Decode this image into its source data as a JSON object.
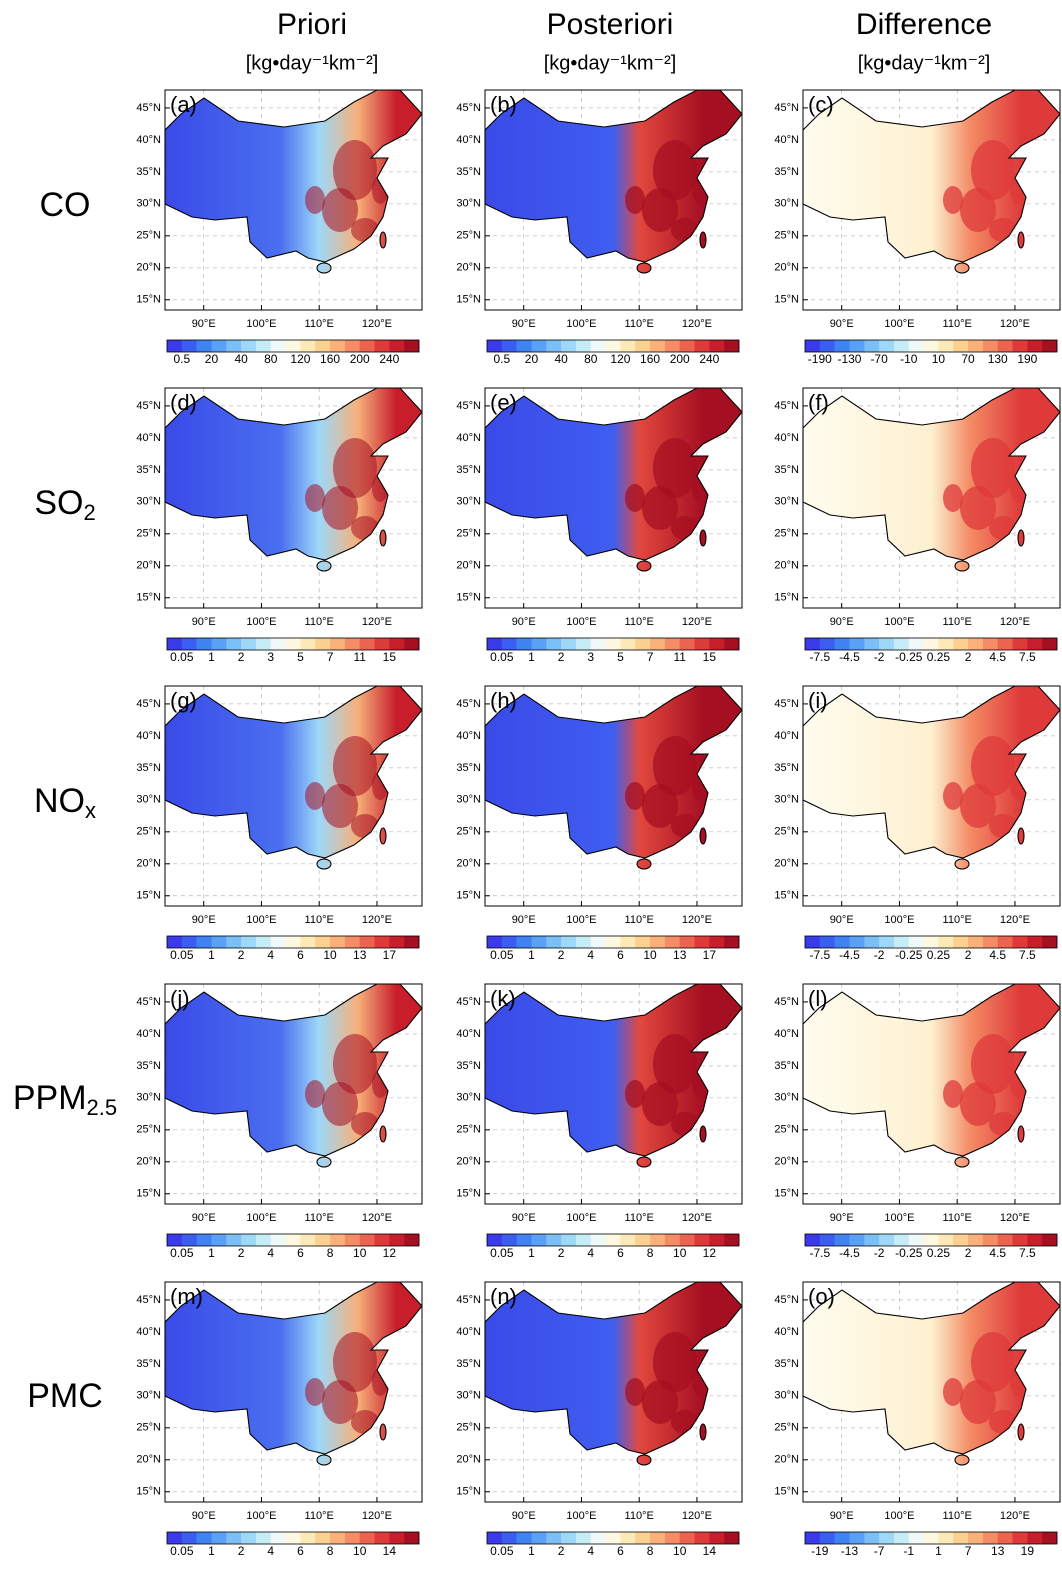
{
  "columns": [
    {
      "title": "Priori",
      "unit": "[kg•day⁻¹km⁻²]"
    },
    {
      "title": "Posteriori",
      "unit": "[kg•day⁻¹km⁻²]"
    },
    {
      "title": "Difference",
      "unit": "[kg•day⁻¹km⁻²]"
    }
  ],
  "rows": [
    {
      "label": "CO"
    },
    {
      "label": "SO",
      "subscript": "2"
    },
    {
      "label": "NO",
      "subscript": "x"
    },
    {
      "label": "PPM",
      "subscript": "2.5"
    },
    {
      "label": "PMC"
    }
  ],
  "map": {
    "lonlim": [
      83.3,
      127.8
    ],
    "latlim": [
      13.4,
      47.8
    ],
    "lat_ticks": [
      {
        "value": 15,
        "label": "15°N"
      },
      {
        "value": 20,
        "label": "20°N"
      },
      {
        "value": 25,
        "label": "25°N"
      },
      {
        "value": 30,
        "label": "30°N"
      },
      {
        "value": 35,
        "label": "35°N"
      },
      {
        "value": 40,
        "label": "40°N"
      },
      {
        "value": 45,
        "label": "45°N"
      }
    ],
    "lon_ticks": [
      {
        "value": 90,
        "label": "90°E"
      },
      {
        "value": 100,
        "label": "100°E"
      },
      {
        "value": 110,
        "label": "110°E"
      },
      {
        "value": 120,
        "label": "120°E"
      }
    ]
  },
  "palette": [
    "#3a3ae8",
    "#3a5ef0",
    "#3f82f2",
    "#5aa0f4",
    "#7cbef6",
    "#9ed8f8",
    "#c6ecf8",
    "#eef9f8",
    "#fff8e0",
    "#fde8b8",
    "#fcd090",
    "#f9b07a",
    "#f48c66",
    "#ec6350",
    "#de3a3a",
    "#c81e2c",
    "#a50f22"
  ],
  "panels": [
    {
      "label": "(a)",
      "colorbar_ticks": [
        0.5,
        20,
        40,
        80,
        120,
        160,
        200,
        240
      ]
    },
    {
      "label": "(b)",
      "colorbar_ticks": [
        0.5,
        20,
        40,
        80,
        120,
        160,
        200,
        240
      ]
    },
    {
      "label": "(c)",
      "colorbar_ticks": [
        -190,
        -130,
        -70,
        -10,
        10,
        70,
        130,
        190
      ]
    },
    {
      "label": "(d)",
      "colorbar_ticks": [
        0.05,
        1,
        2,
        3,
        5,
        7,
        11,
        15
      ]
    },
    {
      "label": "(e)",
      "colorbar_ticks": [
        0.05,
        1,
        2,
        3,
        5,
        7,
        11,
        15
      ]
    },
    {
      "label": "(f)",
      "colorbar_ticks": [
        -7.5,
        -4.5,
        -2,
        -0.25,
        0.25,
        2,
        4.5,
        7.5
      ]
    },
    {
      "label": "(g)",
      "colorbar_ticks": [
        0.05,
        1,
        2,
        4,
        6,
        10,
        13,
        17
      ]
    },
    {
      "label": "(h)",
      "colorbar_ticks": [
        0.05,
        1,
        2,
        4,
        6,
        10,
        13,
        17
      ]
    },
    {
      "label": "(i)",
      "colorbar_ticks": [
        -7.5,
        -4.5,
        -2,
        -0.25,
        0.25,
        2,
        4.5,
        7.5
      ]
    },
    {
      "label": "(j)",
      "colorbar_ticks": [
        0.05,
        1,
        2,
        4,
        6,
        8,
        10,
        12
      ]
    },
    {
      "label": "(k)",
      "colorbar_ticks": [
        0.05,
        1,
        2,
        4,
        6,
        8,
        10,
        12
      ]
    },
    {
      "label": "(l)",
      "colorbar_ticks": [
        -7.5,
        -4.5,
        -2,
        -0.25,
        0.25,
        2,
        4.5,
        7.5
      ]
    },
    {
      "label": "(m)",
      "colorbar_ticks": [
        0.05,
        1,
        2,
        4,
        6,
        8,
        10,
        14
      ]
    },
    {
      "label": "(n)",
      "colorbar_ticks": [
        0.05,
        1,
        2,
        4,
        6,
        8,
        10,
        14
      ]
    },
    {
      "label": "(o)",
      "colorbar_ticks": [
        -19,
        -13,
        -7,
        -1,
        1,
        7,
        13,
        19
      ]
    }
  ]
}
